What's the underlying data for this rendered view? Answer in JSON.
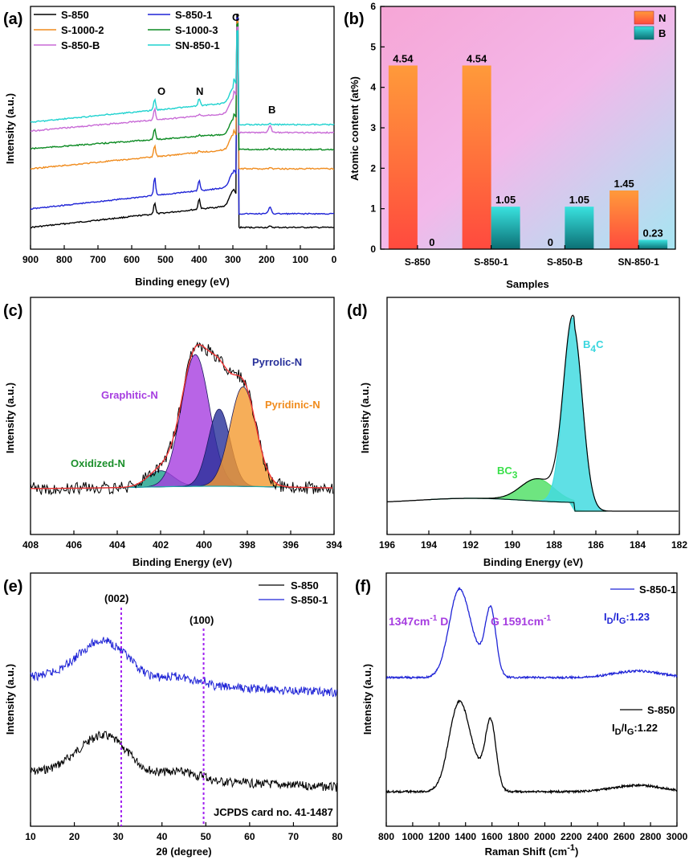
{
  "chart_data": [
    {
      "panel": "(a)",
      "type": "line",
      "xlabel": "Binding enegy (eV)",
      "ylabel": "Intensity (a.u.)",
      "xlim": [
        900,
        0
      ],
      "xticks": [
        900,
        800,
        700,
        600,
        500,
        400,
        300,
        200,
        100,
        0
      ],
      "legend": [
        "S-850",
        "S-850-1",
        "S-1000-2",
        "S-1000-3",
        "S-850-B",
        "SN-850-1"
      ],
      "series": [
        {
          "name": "S-850",
          "color": "#000000",
          "values": [
            0.12,
            0.16,
            0.2,
            0.22,
            0.26,
            0.32,
            0.35,
            0.02
          ]
        },
        {
          "name": "S-850-1",
          "color": "#1f24d6",
          "values": [
            0.2,
            0.25,
            0.28,
            0.31,
            0.35,
            0.4,
            0.44,
            0.08
          ]
        },
        {
          "name": "S-1000-2",
          "color": "#f08c1e",
          "values": [
            0.32,
            0.36,
            0.38,
            0.39,
            0.42,
            0.44,
            0.47,
            0.3
          ]
        },
        {
          "name": "S-1000-3",
          "color": "#0b8a22",
          "values": [
            0.42,
            0.45,
            0.47,
            0.48,
            0.5,
            0.52,
            0.54,
            0.38
          ]
        },
        {
          "name": "S-850-B",
          "color": "#c86ad6",
          "values": [
            0.5,
            0.53,
            0.55,
            0.56,
            0.57,
            0.59,
            0.6,
            0.46
          ]
        },
        {
          "name": "SN-850-1",
          "color": "#1fd2cf",
          "values": [
            0.6,
            0.62,
            0.64,
            0.65,
            0.66,
            0.68,
            0.7,
            0.54
          ]
        }
      ],
      "annotations": [
        "O",
        "N",
        "C",
        "B"
      ]
    },
    {
      "panel": "(b)",
      "type": "bar",
      "xlabel": "Samples",
      "ylabel": "Atomic content (at%)",
      "ylim": [
        0,
        6
      ],
      "yticks": [
        0,
        1,
        2,
        3,
        4,
        5,
        6
      ],
      "categories": [
        "S-850",
        "S-850-1",
        "S-850-B",
        "SN-850-1"
      ],
      "series": [
        {
          "name": "N",
          "values": [
            4.54,
            4.54,
            0,
            1.45
          ],
          "labels": [
            "4.54",
            "4.54",
            "0",
            "1.45"
          ]
        },
        {
          "name": "B",
          "values": [
            0,
            1.05,
            1.05,
            0.23
          ],
          "labels": [
            "0",
            "1.05",
            "1.05",
            "0.23"
          ]
        }
      ]
    },
    {
      "panel": "(c)",
      "type": "area",
      "xlabel": "Binding Energy (eV)",
      "ylabel": "Intensity (a.u.)",
      "xlim": [
        408,
        394
      ],
      "xticks": [
        408,
        406,
        404,
        402,
        400,
        398,
        396,
        394
      ],
      "peaks": [
        {
          "name": "Oxidized-N",
          "center": 402.0,
          "height": 0.1,
          "width": 0.6,
          "color": "#1aa08a"
        },
        {
          "name": "Graphitic-N",
          "center": 400.4,
          "height": 0.82,
          "width": 0.65,
          "color": "#a63de0"
        },
        {
          "name": "Pyrrolic-N",
          "center": 399.3,
          "height": 0.48,
          "width": 0.5,
          "color": "#27309a"
        },
        {
          "name": "Pyridinic-N",
          "center": 398.2,
          "height": 0.62,
          "width": 0.6,
          "color": "#f49a30"
        }
      ]
    },
    {
      "panel": "(d)",
      "type": "area",
      "xlabel": "Binding Energy (eV)",
      "ylabel": "Intensity (a.u.)",
      "xlim": [
        196,
        182
      ],
      "xticks": [
        196,
        194,
        192,
        190,
        188,
        186,
        184,
        182
      ],
      "peaks": [
        {
          "name": "BC3",
          "center": 188.8,
          "height": 0.12,
          "width": 0.8,
          "color": "#55e06a"
        },
        {
          "name": "B4C",
          "center": 187.1,
          "height": 1.0,
          "width": 0.45,
          "color": "#43dbe0"
        }
      ]
    },
    {
      "panel": "(e)",
      "type": "line",
      "xlabel": "2θ (degree)",
      "ylabel": "Intensity (a.u.)",
      "xlim": [
        10,
        80
      ],
      "xticks": [
        10,
        20,
        30,
        40,
        50,
        60,
        70,
        80
      ],
      "series": [
        {
          "name": "S-850",
          "color": "#000000"
        },
        {
          "name": "S-850-1",
          "color": "#1f24d6"
        }
      ],
      "reference_lines": [
        {
          "label": "(002)",
          "x": 30.7
        },
        {
          "label": "(100)",
          "x": 49.5
        }
      ],
      "annotation": "JCPDS card no. 41-1487"
    },
    {
      "panel": "(f)",
      "type": "line",
      "xlabel": "Raman Shift (cm-1)",
      "ylabel": "Intensity (a.u.)",
      "xlim": [
        800,
        3000
      ],
      "xticks": [
        800,
        1000,
        1200,
        1400,
        1600,
        1800,
        2000,
        2200,
        2400,
        2600,
        2800,
        3000
      ],
      "series": [
        {
          "name": "S-850-1",
          "color": "#1f24d6",
          "ratio": "1.23"
        },
        {
          "name": "S-850",
          "color": "#000000",
          "ratio": "1.22"
        }
      ],
      "peaks": [
        {
          "label": "D",
          "position": "1347cm-1"
        },
        {
          "label": "G",
          "position": "1591cm-1"
        }
      ]
    }
  ]
}
